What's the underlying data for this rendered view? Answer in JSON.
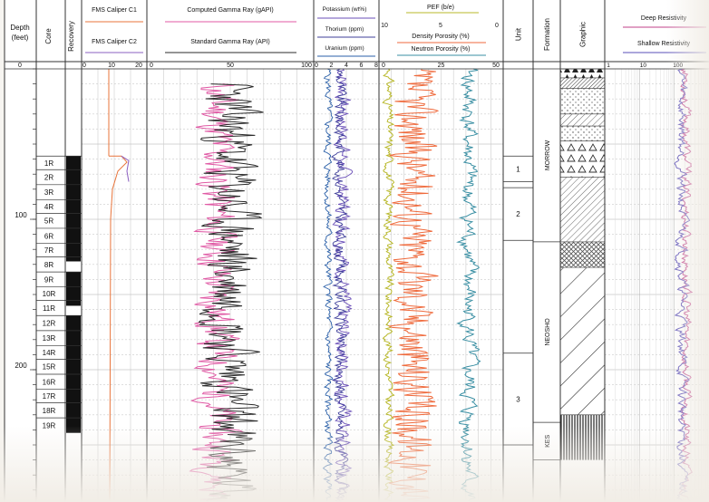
{
  "header": {
    "depth": "Depth (feet)",
    "core": "Core",
    "recovery": "Recovery",
    "caliper_c1": "FMS Caliper C1",
    "caliper_c2": "FMS Caliper C2",
    "cgr": "Computed Gamma Ray (gAPI)",
    "sgr": "Standard Gamma Ray (API)",
    "potassium": "Potassium (wt%)",
    "thorium": "Thorium (ppm)",
    "uranium": "Uranium (ppm)",
    "pef": "PEF (b/e)",
    "density_porosity": "Density Porosity (%)",
    "neutron_porosity": "Neutron Porosity (%)",
    "unit": "Unit",
    "formation": "Formation",
    "graphic": "Graphic",
    "deep_res": "Deep Resistivity",
    "shallow_res": "Shallow Resistivity"
  },
  "scales": {
    "depth": [
      "0"
    ],
    "caliper": [
      "0",
      "10",
      "20"
    ],
    "gamma": [
      "0",
      "50",
      "100"
    ],
    "spectral": [
      "0",
      "2",
      "4",
      "6",
      "8"
    ],
    "pef": [
      "10",
      "5",
      "0"
    ],
    "porosity": [
      "0",
      "25",
      "50"
    ],
    "resistivity": [
      "1",
      "10",
      "100"
    ]
  },
  "depth_labels": [
    {
      "text": "100",
      "depth": 100
    },
    {
      "text": "200",
      "depth": 200
    }
  ],
  "cores": [
    {
      "label": "1R",
      "top": 58,
      "bottom": 67
    },
    {
      "label": "2R",
      "top": 67,
      "bottom": 77
    },
    {
      "label": "3R",
      "top": 77,
      "bottom": 87
    },
    {
      "label": "4R",
      "top": 87,
      "bottom": 96
    },
    {
      "label": "5R",
      "top": 96,
      "bottom": 106
    },
    {
      "label": "6R",
      "top": 106,
      "bottom": 116
    },
    {
      "label": "7R",
      "top": 116,
      "bottom": 125
    },
    {
      "label": "8R",
      "top": 125,
      "bottom": 135
    },
    {
      "label": "9R",
      "top": 135,
      "bottom": 145
    },
    {
      "label": "10R",
      "top": 145,
      "bottom": 154
    },
    {
      "label": "11R",
      "top": 154,
      "bottom": 164
    },
    {
      "label": "12R",
      "top": 164,
      "bottom": 174
    },
    {
      "label": "13R",
      "top": 174,
      "bottom": 184
    },
    {
      "label": "14R",
      "top": 184,
      "bottom": 193
    },
    {
      "label": "15R",
      "top": 193,
      "bottom": 203
    },
    {
      "label": "16R",
      "top": 203,
      "bottom": 213
    },
    {
      "label": "17R",
      "top": 213,
      "bottom": 222
    },
    {
      "label": "18R",
      "top": 222,
      "bottom": 232
    },
    {
      "label": "19R",
      "top": 232,
      "bottom": 242
    }
  ],
  "units": [
    {
      "label": "1",
      "top": 58,
      "bottom": 75
    },
    {
      "label": "2",
      "top": 79,
      "bottom": 114
    },
    {
      "label": "3",
      "top": 189,
      "bottom": 250
    }
  ],
  "formations": [
    {
      "label": "MORROW",
      "top": 0,
      "bottom": 115
    },
    {
      "label": "NEOSHO",
      "top": 115,
      "bottom": 235
    },
    {
      "label": "KES",
      "top": 235,
      "bottom": 260
    }
  ],
  "lithology": [
    {
      "pattern": "triangles-dark",
      "top": 0,
      "bottom": 6
    },
    {
      "pattern": "hatch-dense",
      "top": 6,
      "bottom": 13
    },
    {
      "pattern": "dots",
      "top": 13,
      "bottom": 30
    },
    {
      "pattern": "diag-fine",
      "top": 30,
      "bottom": 38
    },
    {
      "pattern": "dots",
      "top": 38,
      "bottom": 48
    },
    {
      "pattern": "triangles",
      "top": 48,
      "bottom": 72
    },
    {
      "pattern": "diag-fine",
      "top": 72,
      "bottom": 115
    },
    {
      "pattern": "crosshatch",
      "top": 115,
      "bottom": 132
    },
    {
      "pattern": "diag-wide",
      "top": 132,
      "bottom": 230
    },
    {
      "pattern": "vertical",
      "top": 230,
      "bottom": 260
    }
  ],
  "colors": {
    "caliper_c1": "#e8743b",
    "caliper_c2": "#8b5fc0",
    "cgr": "#e05aa5",
    "sgr": "#2b2b2b",
    "potassium": "#6a4fb8",
    "thorium": "#3f3f9a",
    "uranium": "#2a5fa8",
    "pef": "#b8b82a",
    "density": "#ef6a3c",
    "neutron": "#3a8fa3",
    "deep_res": "#c0428a",
    "shallow_res": "#5a4fb8"
  }
}
